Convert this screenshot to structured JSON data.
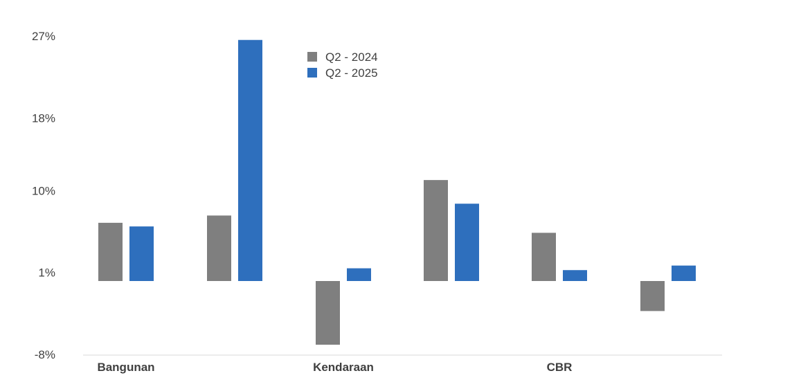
{
  "chart_data": {
    "type": "bar",
    "categories": [
      "Bangunan",
      "",
      "Kendaraan",
      "",
      "CBR",
      ""
    ],
    "y_tick_labels": [
      "27%",
      "18%",
      "10%",
      "1%",
      "-8%"
    ],
    "y_tick_values": [
      27,
      18,
      10,
      1,
      -8
    ],
    "ylim": [
      -8,
      27
    ],
    "grid": false,
    "legend_position": "top-center",
    "series": [
      {
        "name": "Q2 - 2024",
        "color": "#7f7f7f",
        "values": [
          6.4,
          7.2,
          -7.0,
          11.1,
          5.3,
          -3.3
        ]
      },
      {
        "name": "Q2 - 2025",
        "color": "#2e6fbd",
        "values": [
          6.0,
          26.5,
          1.4,
          8.5,
          1.2,
          1.7
        ]
      }
    ]
  }
}
